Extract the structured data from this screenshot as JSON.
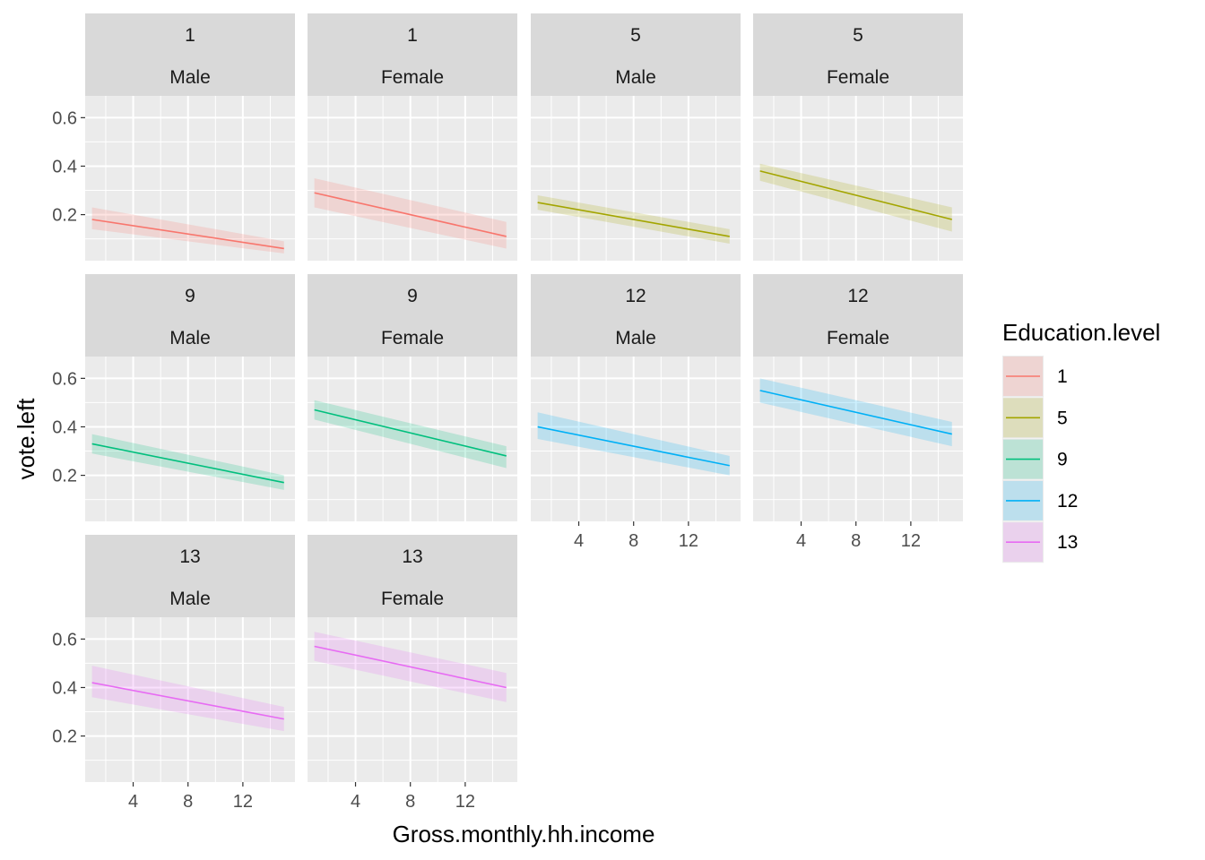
{
  "chart_data": {
    "type": "line",
    "layout": "facet_wrap",
    "xlabel": "Gross.monthly.hh.income",
    "ylabel": "vote.left",
    "x_ticks": [
      4,
      8,
      12
    ],
    "y_ticks": [
      0.2,
      0.4,
      0.6
    ],
    "x_ticks_label": [
      "4",
      "8",
      "12"
    ],
    "y_ticks_label": [
      "0.2",
      "0.4",
      "0.6"
    ],
    "xlim": [
      0.5,
      15.8
    ],
    "ylim": [
      0.01,
      0.69
    ],
    "x_range": [
      1,
      15
    ],
    "grid": true,
    "legend": {
      "title": "Education.level",
      "placement": "right",
      "entries": [
        {
          "label": "1",
          "color": "#F8766D"
        },
        {
          "label": "5",
          "color": "#A3A500"
        },
        {
          "label": "9",
          "color": "#00BF7D"
        },
        {
          "label": "12",
          "color": "#00B0F6"
        },
        {
          "label": "13",
          "color": "#E76BF3"
        }
      ]
    },
    "panels": [
      {
        "strip_top": "1",
        "strip_bottom": "Male",
        "series": "1",
        "y_start": 0.18,
        "y_end": 0.06,
        "band_start": [
          0.14,
          0.23
        ],
        "band_end": [
          0.04,
          0.09
        ]
      },
      {
        "strip_top": "1",
        "strip_bottom": "Female",
        "series": "1",
        "y_start": 0.29,
        "y_end": 0.11,
        "band_start": [
          0.23,
          0.35
        ],
        "band_end": [
          0.06,
          0.17
        ]
      },
      {
        "strip_top": "5",
        "strip_bottom": "Male",
        "series": "5",
        "y_start": 0.25,
        "y_end": 0.11,
        "band_start": [
          0.22,
          0.28
        ],
        "band_end": [
          0.08,
          0.14
        ]
      },
      {
        "strip_top": "5",
        "strip_bottom": "Female",
        "series": "5",
        "y_start": 0.38,
        "y_end": 0.18,
        "band_start": [
          0.34,
          0.41
        ],
        "band_end": [
          0.13,
          0.23
        ]
      },
      {
        "strip_top": "9",
        "strip_bottom": "Male",
        "series": "9",
        "y_start": 0.33,
        "y_end": 0.17,
        "band_start": [
          0.29,
          0.37
        ],
        "band_end": [
          0.14,
          0.2
        ]
      },
      {
        "strip_top": "9",
        "strip_bottom": "Female",
        "series": "9",
        "y_start": 0.47,
        "y_end": 0.28,
        "band_start": [
          0.43,
          0.51
        ],
        "band_end": [
          0.23,
          0.32
        ]
      },
      {
        "strip_top": "12",
        "strip_bottom": "Male",
        "series": "12",
        "y_start": 0.4,
        "y_end": 0.24,
        "band_start": [
          0.35,
          0.46
        ],
        "band_end": [
          0.2,
          0.28
        ]
      },
      {
        "strip_top": "12",
        "strip_bottom": "Female",
        "series": "12",
        "y_start": 0.55,
        "y_end": 0.37,
        "band_start": [
          0.5,
          0.6
        ],
        "band_end": [
          0.32,
          0.42
        ]
      },
      {
        "strip_top": "13",
        "strip_bottom": "Male",
        "series": "13",
        "y_start": 0.42,
        "y_end": 0.27,
        "band_start": [
          0.36,
          0.49
        ],
        "band_end": [
          0.22,
          0.32
        ]
      },
      {
        "strip_top": "13",
        "strip_bottom": "Female",
        "series": "13",
        "y_start": 0.57,
        "y_end": 0.4,
        "band_start": [
          0.51,
          0.63
        ],
        "band_end": [
          0.34,
          0.46
        ]
      }
    ]
  }
}
